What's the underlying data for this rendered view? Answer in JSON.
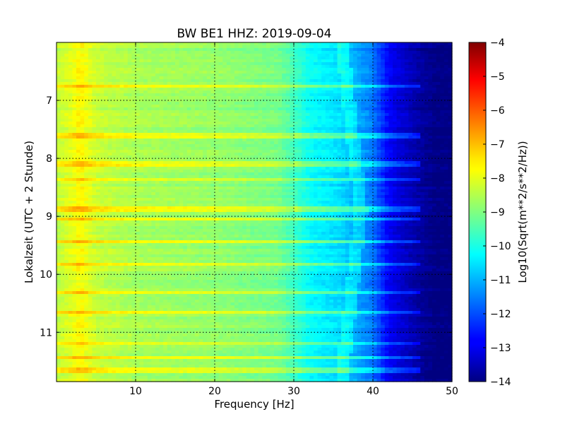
{
  "chart_data": {
    "type": "heatmap",
    "title": "BW BE1 HHZ: 2019-09-04",
    "xlabel": "Frequency [Hz]",
    "ylabel": "Lokalzeit (UTC + 2 Stunde)",
    "xlim": [
      0,
      50
    ],
    "ylim": [
      11.85,
      6.0
    ],
    "x_ticks": [
      10,
      20,
      30,
      40,
      50
    ],
    "y_ticks": [
      7,
      8,
      9,
      10,
      11
    ],
    "grid": true,
    "colorbar": {
      "label": "Log10(Sqrt(m**2/s**2/Hz))",
      "range": [
        -14,
        -4
      ],
      "ticks": [
        -14,
        -13,
        -12,
        -11,
        -10,
        -9,
        -8,
        -7,
        -6,
        -5,
        -4
      ],
      "colormap": "jet"
    },
    "spectral_profile": {
      "frequency_hz": [
        0,
        2,
        3,
        5,
        10,
        20,
        28,
        30,
        32,
        36,
        40,
        42,
        44,
        46,
        48,
        50
      ],
      "log10_amplitude": [
        -8.4,
        -8.0,
        -7.7,
        -8.3,
        -8.6,
        -8.8,
        -9.1,
        -9.6,
        -10.2,
        -10.6,
        -11.6,
        -12.8,
        -13.3,
        -13.7,
        -14.0,
        -14.0
      ]
    },
    "bright_bands_hour": [
      6.75,
      7.6,
      8.1,
      8.35,
      8.88,
      9.05,
      9.45,
      9.82,
      10.3,
      10.65,
      11.2,
      11.45,
      11.65
    ]
  }
}
